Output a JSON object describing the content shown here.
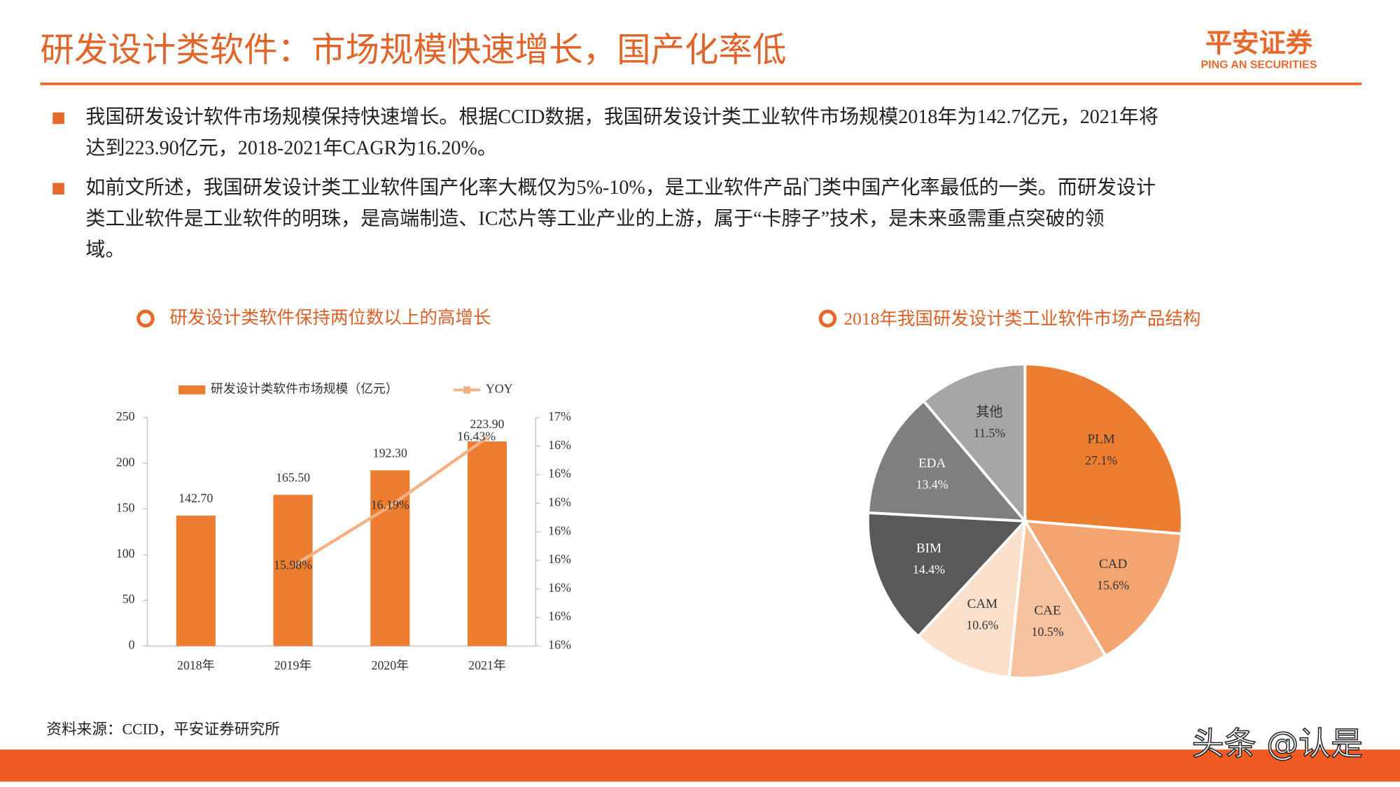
{
  "header": {
    "title": "研发设计类软件：市场规模快速增长，国产化率低",
    "logo": "平安证券",
    "logo_sub": "PING AN SECURITIES"
  },
  "bullets": [
    [
      "我国研发设计软件市场规模保持快速增长。根据CCID数据，我国研发设计类工业软件市场规模2018年为142.7亿元，2021年将",
      "达到223.90亿元，2018-2021年CAGR为16.20%。"
    ],
    [
      "如前文所述，我国研发设计类工业软件国产化率大概仅为5%-10%，是工业软件产品门类中国产化率最低的一类。而研发设计",
      "类工业软件是工业软件的明珠，是高端制造、IC芯片等工业产业的上游，属于“卡脖子”技术，是未来亟需重点突破的领",
      "域。"
    ]
  ],
  "chart_data": [
    {
      "type": "bar",
      "title": "研发设计类软件保持两位数以上的高增长",
      "categories": [
        "2018年",
        "2019年",
        "2020年",
        "2021年"
      ],
      "series": [
        {
          "name": "研发设计类软件市场规模（亿元）",
          "type": "bar",
          "color": "#ed7d31",
          "values": [
            142.7,
            165.5,
            192.3,
            223.9
          ],
          "value_labels": [
            "142.70",
            "165.50",
            "192.30",
            "223.90"
          ]
        },
        {
          "name": "YOY",
          "type": "line",
          "axis": "y2",
          "color": "#f4b183",
          "values": [
            null,
            15.98,
            16.19,
            16.43
          ],
          "value_labels": [
            null,
            "15.98%",
            "16.19%",
            "16.43%"
          ]
        }
      ],
      "ylim": [
        0,
        250
      ],
      "yticks": [
        0,
        50,
        100,
        150,
        200,
        250
      ],
      "y2lim": [
        15.7,
        16.5
      ],
      "y2ticks": [
        {
          "value": 15.7,
          "label": "16%"
        },
        {
          "value": 15.8,
          "label": "16%"
        },
        {
          "value": 15.9,
          "label": "16%"
        },
        {
          "value": 16.0,
          "label": "16%"
        },
        {
          "value": 16.1,
          "label": "16%"
        },
        {
          "value": 16.2,
          "label": "16%"
        },
        {
          "value": 16.3,
          "label": "16%"
        },
        {
          "value": 16.4,
          "label": "16%"
        },
        {
          "value": 16.5,
          "label": "17%"
        }
      ],
      "legend": "top"
    },
    {
      "type": "pie",
      "title": "2018年我国研发设计类工业软件市场产品结构",
      "categories": [
        "PLM",
        "CAD",
        "CAE",
        "CAM",
        "BIM",
        "EDA",
        "其他"
      ],
      "values": [
        27.1,
        15.6,
        10.5,
        10.6,
        14.4,
        13.4,
        11.5
      ],
      "value_labels": [
        "27.1%",
        "15.6%",
        "10.5%",
        "10.6%",
        "14.4%",
        "13.4%",
        "11.5%"
      ],
      "colors": [
        "#ed7d31",
        "#f4a46f",
        "#f7c39e",
        "#fbe0cc",
        "#595959",
        "#7f7f7f",
        "#a6a6a6"
      ]
    }
  ],
  "source": "资料来源：CCID，平安证券研究所",
  "watermark": "头条 @认是"
}
